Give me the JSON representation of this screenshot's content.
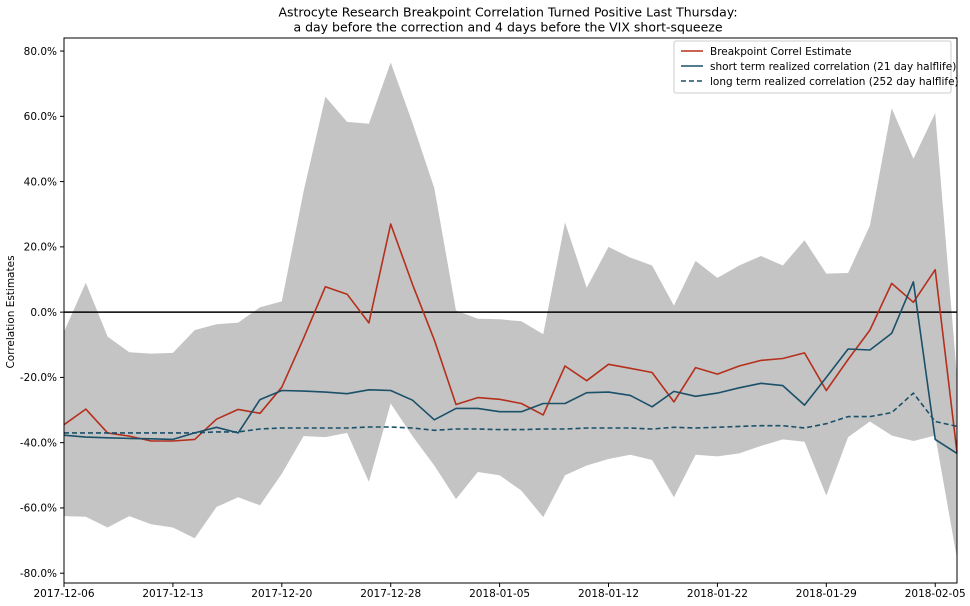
{
  "chart_data": {
    "type": "line",
    "title": "Astrocyte Research Breakpoint Correlation Turned Positive Last Thursday:",
    "subtitle": "a day before the correction and 4 days before the VIX short-squeeze",
    "xlabel": "",
    "ylabel": "Correlation Estimates",
    "ylim": [
      -0.83,
      0.84
    ],
    "x_tick_labels": [
      "2017-12-06",
      "2017-12-13",
      "2017-12-20",
      "2017-12-28",
      "2018-01-05",
      "2018-01-12",
      "2018-01-22",
      "2018-01-29",
      "2018-02-05"
    ],
    "x_tick_index": [
      0,
      5,
      10,
      15,
      20,
      25,
      30,
      35,
      40
    ],
    "y_ticks": [
      -0.8,
      -0.6,
      -0.4,
      -0.2,
      0.0,
      0.2,
      0.4,
      0.6,
      0.8
    ],
    "y_tick_labels": [
      "-80.0%",
      "-60.0%",
      "-40.0%",
      "-20.0%",
      "0.0%",
      "20.0%",
      "40.0%",
      "60.0%",
      "80.0%"
    ],
    "zero_line": 0.0,
    "legend_position": "top-right",
    "colors": {
      "band": "#c4c4c4",
      "breakpoint": "#b5301c",
      "short_term": "#1b5069",
      "long_term": "#1b5069",
      "zero_line": "#000000"
    },
    "n_points": 42,
    "band": {
      "upper": [
        -0.06,
        0.09,
        -0.075,
        -0.123,
        -0.127,
        -0.125,
        -0.055,
        -0.037,
        -0.032,
        0.015,
        0.033,
        0.37,
        0.66,
        0.583,
        0.577,
        0.765,
        0.58,
        0.38,
        0.005,
        -0.02,
        -0.022,
        -0.028,
        -0.068,
        0.275,
        0.075,
        0.2,
        0.167,
        0.143,
        0.02,
        0.157,
        0.105,
        0.143,
        0.172,
        0.143,
        0.22,
        0.118,
        0.12,
        0.265,
        0.625,
        0.47,
        0.61,
        -0.2
      ],
      "lower": [
        -0.625,
        -0.627,
        -0.66,
        -0.625,
        -0.65,
        -0.66,
        -0.693,
        -0.597,
        -0.567,
        -0.592,
        -0.495,
        -0.38,
        -0.383,
        -0.37,
        -0.52,
        -0.28,
        -0.38,
        -0.47,
        -0.573,
        -0.49,
        -0.5,
        -0.547,
        -0.628,
        -0.5,
        -0.47,
        -0.45,
        -0.437,
        -0.453,
        -0.567,
        -0.437,
        -0.442,
        -0.433,
        -0.41,
        -0.39,
        -0.397,
        -0.562,
        -0.383,
        -0.335,
        -0.378,
        -0.395,
        -0.378,
        -0.755
      ]
    },
    "series": [
      {
        "name": "Breakpoint Correl Estimate",
        "style": "solid",
        "values": [
          -0.345,
          -0.297,
          -0.37,
          -0.38,
          -0.395,
          -0.395,
          -0.39,
          -0.328,
          -0.298,
          -0.31,
          -0.23,
          -0.08,
          0.078,
          0.055,
          -0.033,
          0.27,
          0.085,
          -0.085,
          -0.283,
          -0.262,
          -0.267,
          -0.28,
          -0.315,
          -0.165,
          -0.21,
          -0.16,
          -0.172,
          -0.185,
          -0.275,
          -0.17,
          -0.19,
          -0.165,
          -0.148,
          -0.142,
          -0.125,
          -0.24,
          -0.145,
          -0.055,
          0.088,
          0.03,
          0.13,
          -0.43
        ]
      },
      {
        "name": "short term realized correlation (21 day halflife)",
        "style": "solid",
        "values": [
          -0.377,
          -0.383,
          -0.385,
          -0.387,
          -0.388,
          -0.39,
          -0.37,
          -0.353,
          -0.37,
          -0.268,
          -0.24,
          -0.242,
          -0.245,
          -0.25,
          -0.238,
          -0.24,
          -0.27,
          -0.33,
          -0.295,
          -0.295,
          -0.305,
          -0.305,
          -0.28,
          -0.28,
          -0.247,
          -0.245,
          -0.255,
          -0.29,
          -0.243,
          -0.258,
          -0.248,
          -0.232,
          -0.218,
          -0.225,
          -0.285,
          -0.2,
          -0.113,
          -0.116,
          -0.065,
          0.093,
          -0.39,
          -0.433
        ]
      },
      {
        "name": "long term realized correlation (252 day halflife)",
        "style": "dashed",
        "values": [
          -0.37,
          -0.37,
          -0.37,
          -0.37,
          -0.37,
          -0.37,
          -0.37,
          -0.367,
          -0.367,
          -0.358,
          -0.355,
          -0.355,
          -0.355,
          -0.355,
          -0.352,
          -0.352,
          -0.355,
          -0.362,
          -0.358,
          -0.358,
          -0.36,
          -0.36,
          -0.358,
          -0.358,
          -0.355,
          -0.355,
          -0.355,
          -0.358,
          -0.353,
          -0.355,
          -0.353,
          -0.35,
          -0.348,
          -0.348,
          -0.355,
          -0.342,
          -0.32,
          -0.32,
          -0.308,
          -0.248,
          -0.335,
          -0.35
        ]
      }
    ]
  }
}
